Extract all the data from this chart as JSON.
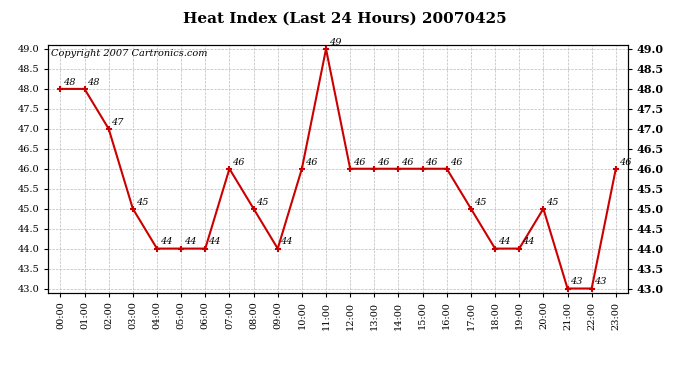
{
  "title": "Heat Index (Last 24 Hours) 20070425",
  "copyright": "Copyright 2007 Cartronics.com",
  "x_labels": [
    "00:00",
    "01:00",
    "02:00",
    "03:00",
    "04:00",
    "05:00",
    "06:00",
    "07:00",
    "08:00",
    "09:00",
    "10:00",
    "11:00",
    "12:00",
    "13:00",
    "14:00",
    "15:00",
    "16:00",
    "17:00",
    "18:00",
    "19:00",
    "20:00",
    "21:00",
    "22:00",
    "23:00"
  ],
  "y_values": [
    48,
    48,
    47,
    45,
    44,
    44,
    44,
    46,
    45,
    44,
    46,
    49,
    46,
    46,
    46,
    46,
    46,
    45,
    44,
    44,
    45,
    43,
    43,
    46
  ],
  "ylim_min": 43.0,
  "ylim_max": 49.0,
  "line_color": "#cc0000",
  "bg_color": "#ffffff",
  "grid_color": "#bbbbbb",
  "title_fontsize": 11,
  "label_fontsize": 7,
  "copyright_fontsize": 7,
  "annot_fontsize": 7,
  "y_ticks": [
    43.0,
    43.5,
    44.0,
    44.5,
    45.0,
    45.5,
    46.0,
    46.5,
    47.0,
    47.5,
    48.0,
    48.5,
    49.0
  ]
}
